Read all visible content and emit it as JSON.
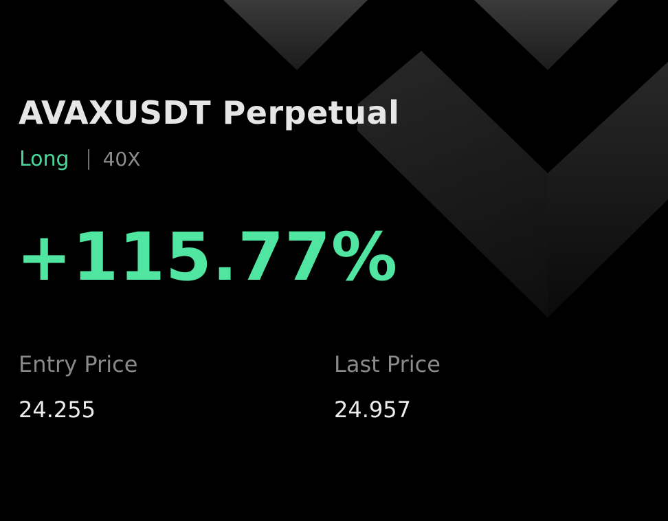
{
  "position": {
    "symbol_title": "AVAXUSDT Perpetual",
    "side": "Long",
    "leverage": "40X",
    "pnl_percent": "+115.77%"
  },
  "stats": {
    "entry": {
      "label": "Entry Price",
      "value": "24.255"
    },
    "last": {
      "label": "Last Price",
      "value": "24.957"
    }
  },
  "colors": {
    "background": "#000000",
    "accent_green": "#50e5a0",
    "side_green": "#4cd79a",
    "title_text": "#e6e6e6",
    "muted_text": "#8a8a8a",
    "value_text": "#ededed"
  },
  "decor": {
    "background_pattern": "chevron-shapes"
  }
}
